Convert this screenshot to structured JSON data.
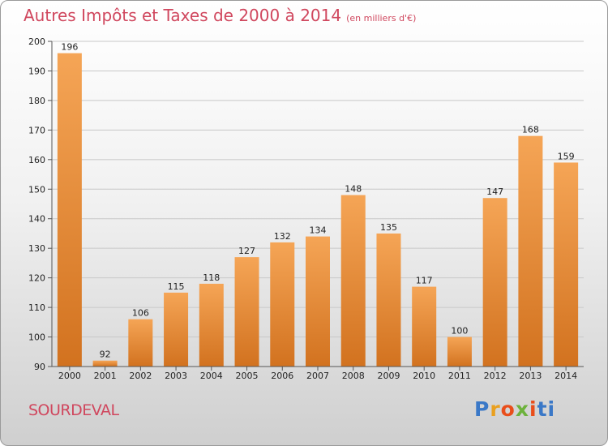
{
  "header": {
    "title": "Autres Impôts et Taxes de 2000 à 2014",
    "unit": "(en milliers d'€)"
  },
  "footer": {
    "commune": "SOURDEVAL",
    "logo": [
      "P",
      "r",
      "o",
      "x",
      "i",
      "ti"
    ]
  },
  "colors": {
    "bar_top": "#f5a556",
    "bar_bottom": "#d2721f",
    "title": "#d0475e",
    "grid": "#c8c8c8"
  },
  "chart_data": {
    "type": "bar",
    "categories": [
      "2000",
      "2001",
      "2002",
      "2003",
      "2004",
      "2005",
      "2006",
      "2007",
      "2008",
      "2009",
      "2010",
      "2011",
      "2012",
      "2013",
      "2014"
    ],
    "values": [
      196,
      92,
      106,
      115,
      118,
      127,
      132,
      134,
      148,
      135,
      117,
      100,
      147,
      168,
      159
    ],
    "ylim": [
      90,
      200
    ],
    "yticks": [
      90,
      100,
      110,
      120,
      130,
      140,
      150,
      160,
      170,
      180,
      190,
      200
    ],
    "grid": true,
    "legend": "none",
    "data_labels": true
  }
}
